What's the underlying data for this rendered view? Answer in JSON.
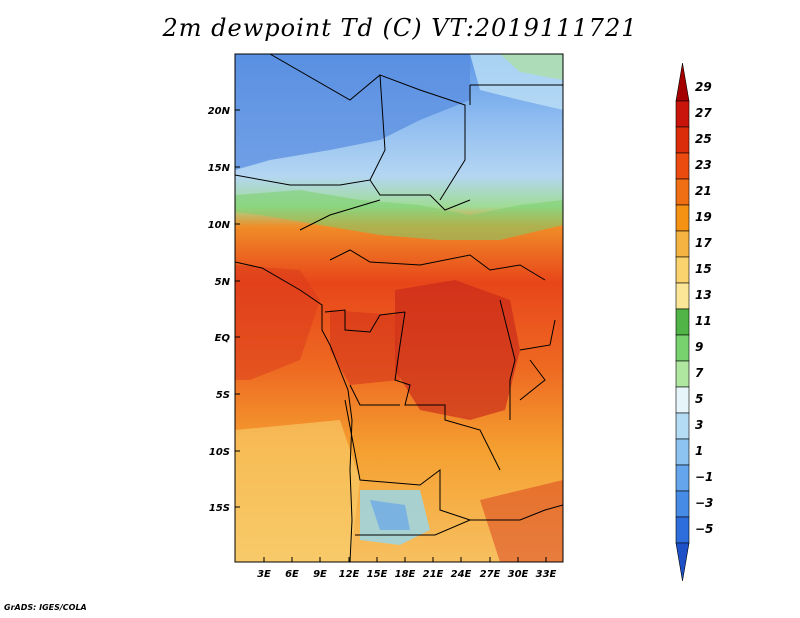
{
  "title": "2m dewpoint Td (C) VT:2019111721",
  "credit": "GrADS: IGES/COLA",
  "map": {
    "lat_labels": [
      "20N",
      "15N",
      "10N",
      "5N",
      "EQ",
      "5S",
      "10S",
      "15S"
    ],
    "lon_labels": [
      "3E",
      "6E",
      "9E",
      "12E",
      "15E",
      "18E",
      "21E",
      "24E",
      "27E",
      "30E",
      "33E"
    ]
  },
  "colorbar": {
    "labels": [
      "29",
      "27",
      "25",
      "23",
      "21",
      "19",
      "17",
      "15",
      "13",
      "11",
      "9",
      "7",
      "5",
      "3",
      "1",
      "−1",
      "−3",
      "−5"
    ],
    "colors": [
      "#a50000",
      "#c8140a",
      "#dc2d0a",
      "#eb4b0f",
      "#f06e14",
      "#f59214",
      "#f5b441",
      "#fad26e",
      "#fae696",
      "#50b446",
      "#78d26e",
      "#afe6a0",
      "#e6f5fa",
      "#b4dcf5",
      "#8cc3f0",
      "#64a5eb",
      "#468ce6",
      "#2d6edc",
      "#1e50c8"
    ]
  }
}
